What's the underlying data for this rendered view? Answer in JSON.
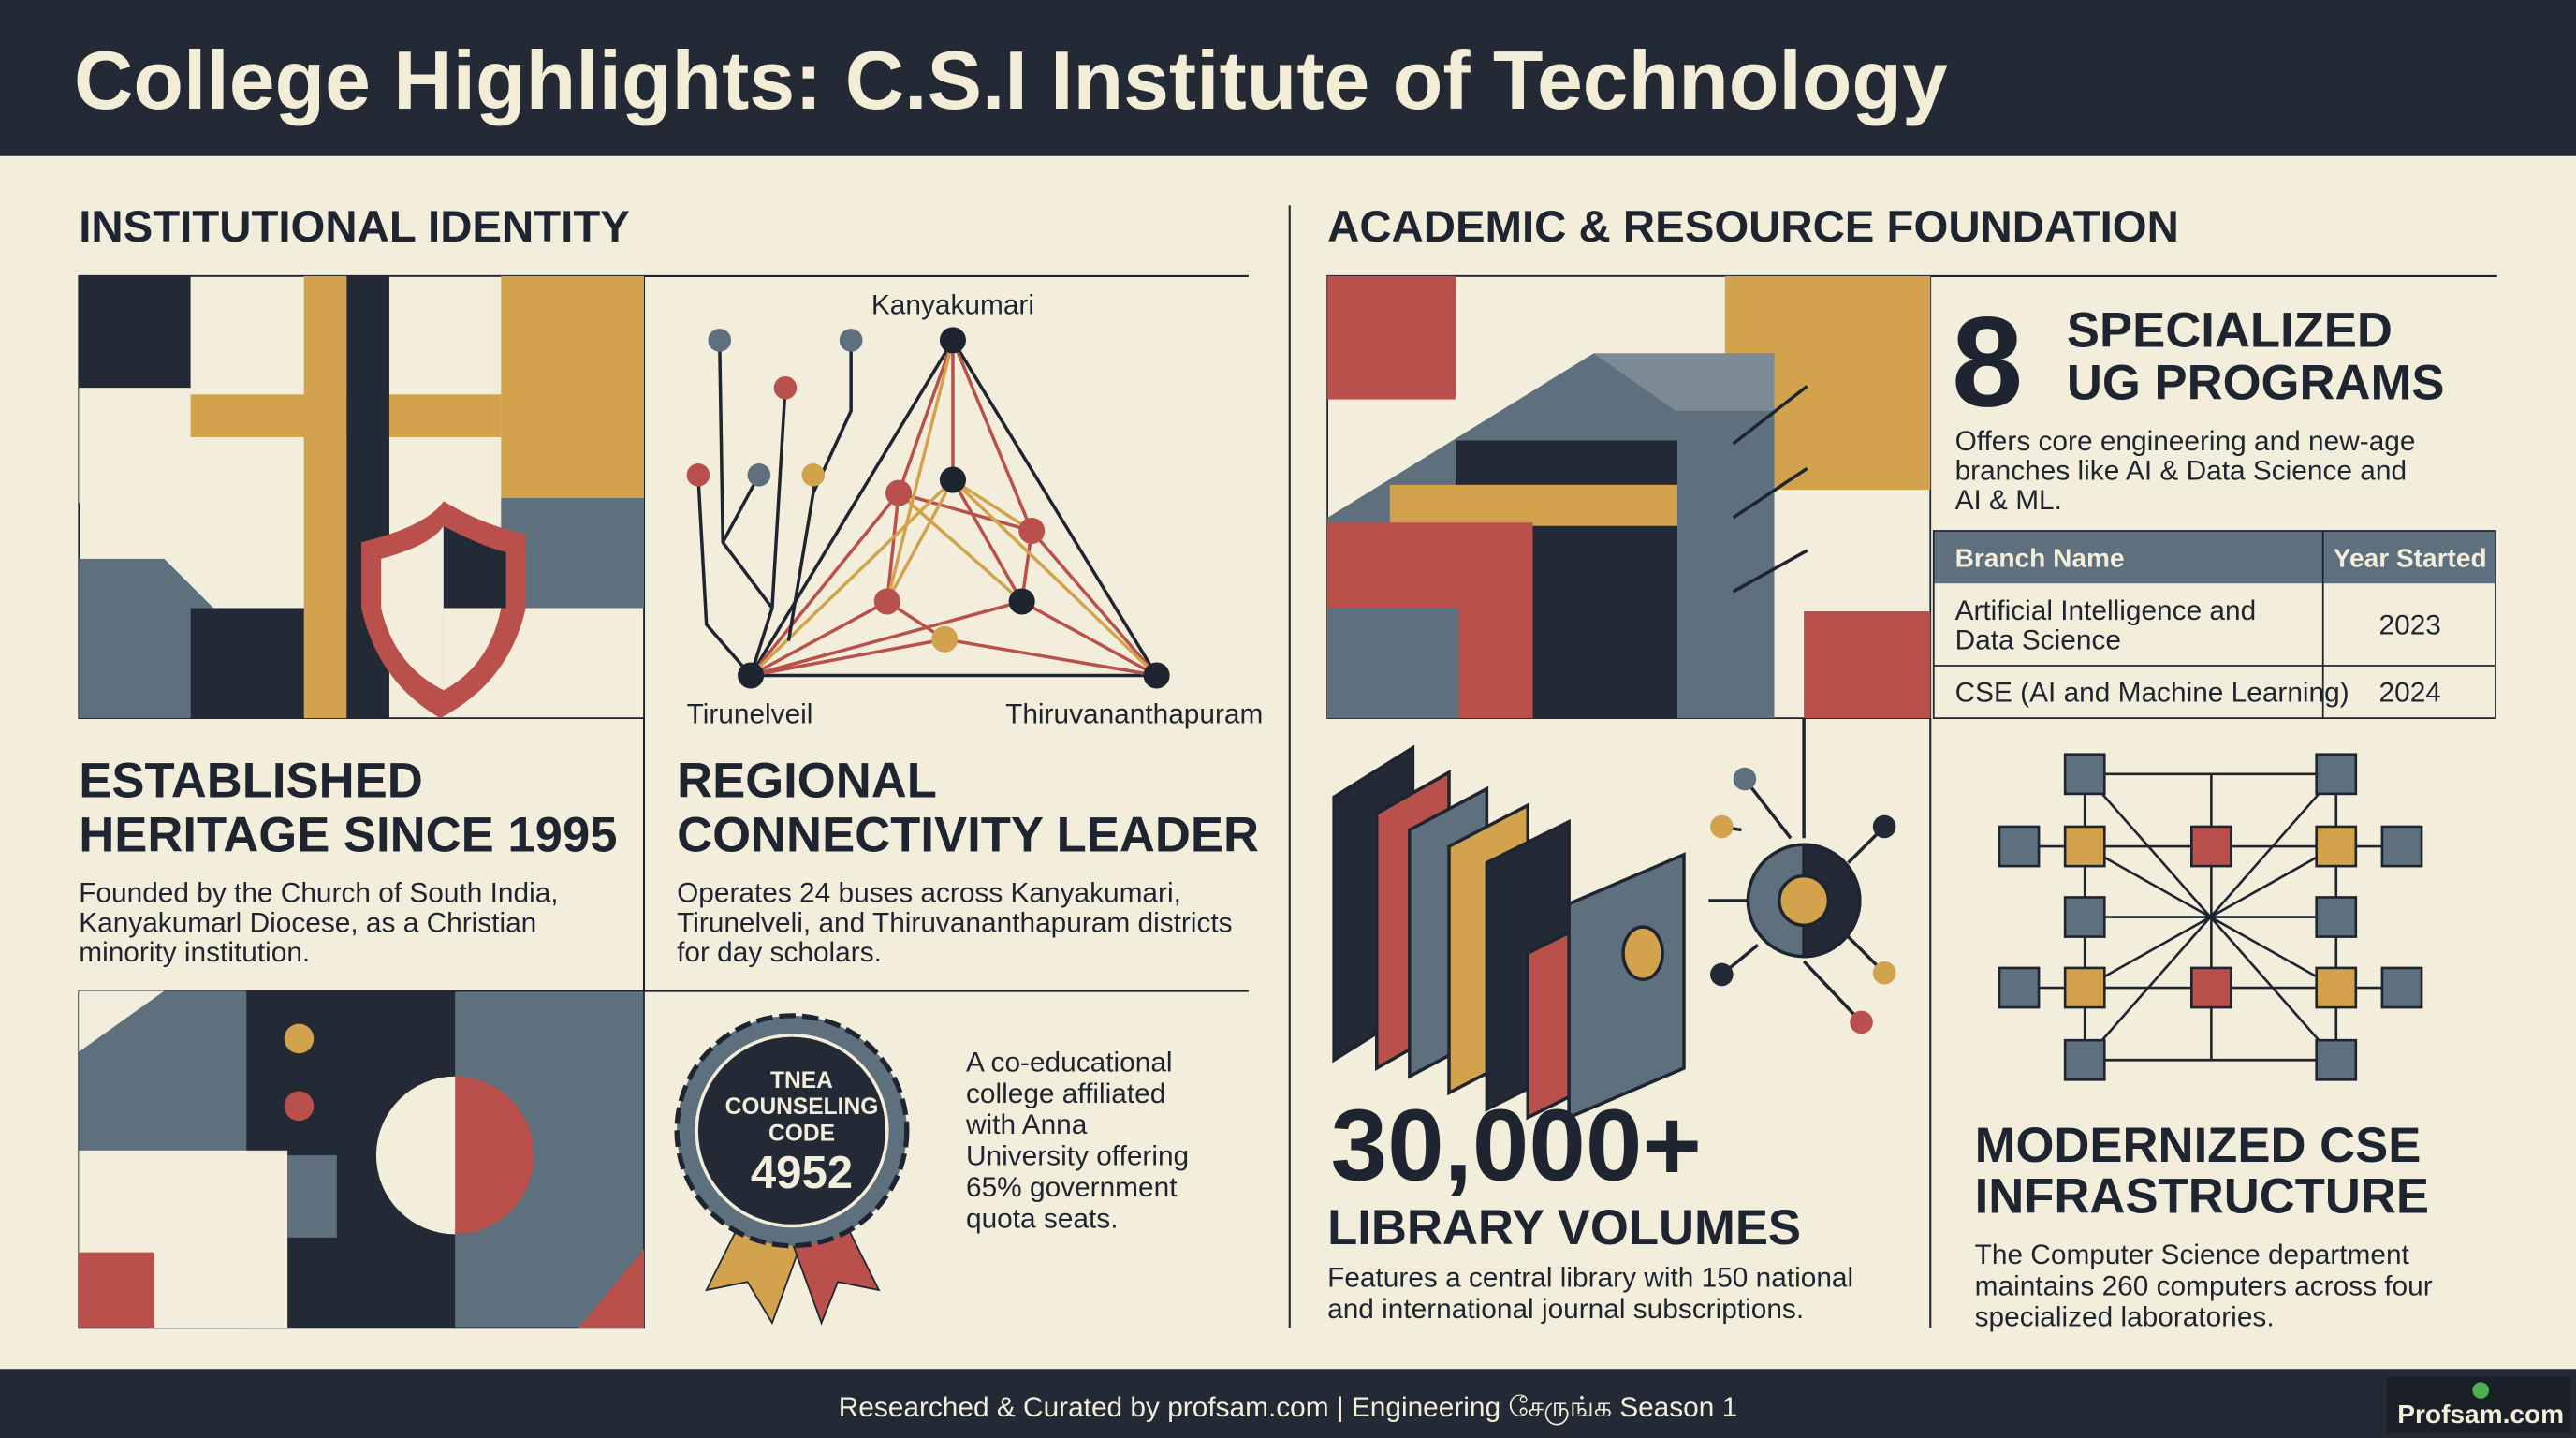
{
  "header": {
    "title": "College Highlights: C.S.I Institute of Technology"
  },
  "identity": {
    "heading": "INSTITUTIONAL IDENTITY",
    "map_labels": [
      "Kanyakumari",
      "Tirunelveil",
      "Thiruvananthapuram"
    ],
    "heritage": {
      "title": [
        "ESTABLISHED",
        "HERITAGE SINCE 1995"
      ],
      "text": [
        "Founded by the Church of South India,",
        "Kanyakumarl Diocese, as a Christian",
        "minority institution."
      ]
    },
    "connectivity": {
      "title": [
        "REGIONAL",
        "CONNECTIVITY LEADER"
      ],
      "text": [
        "Operates 24 buses across Kanyakumari,",
        "Tirunelveli, and Thiruvananthapuram districts",
        "for day scholars."
      ]
    },
    "badge": {
      "lines": [
        "TNEA",
        "COUNSELING",
        "CODE"
      ],
      "code": "4952"
    },
    "coed": {
      "text": [
        "A co-educational",
        "college affiliated",
        "with Anna",
        "University offering",
        "65% government",
        "quota seats."
      ]
    }
  },
  "academic": {
    "heading": "ACADEMIC & RESOURCE FOUNDATION",
    "programs": {
      "count": "8",
      "title": [
        "SPECIALIZED",
        "UG PROGRAMS"
      ],
      "text": [
        "Offers core engineering and new-age",
        "branches like AI & Data Science and",
        "AI & ML."
      ],
      "table": {
        "columns": [
          "Branch Name",
          "Year Started"
        ],
        "rows": [
          {
            "branch": [
              "Artificial Intelligence and",
              "Data Science"
            ],
            "year": "2023"
          },
          {
            "branch": [
              "CSE (AI and Machine Learning)"
            ],
            "year": "2024"
          }
        ]
      }
    },
    "library": {
      "count": "30,000+",
      "title": "LIBRARY VOLUMES",
      "text": [
        "Features a central library with 150 national",
        "and international journal subscriptions."
      ]
    },
    "cse": {
      "title": [
        "MODERNIZED CSE",
        "INFRASTRUCTURE"
      ],
      "text": [
        "The Computer Science department",
        "maintains 260 computers across four",
        "specialized laboratories."
      ]
    }
  },
  "footer": {
    "credit": "Researched & Curated by profsam.com | Engineering சேருங்க Season 1",
    "logo": "Profsam.com"
  }
}
